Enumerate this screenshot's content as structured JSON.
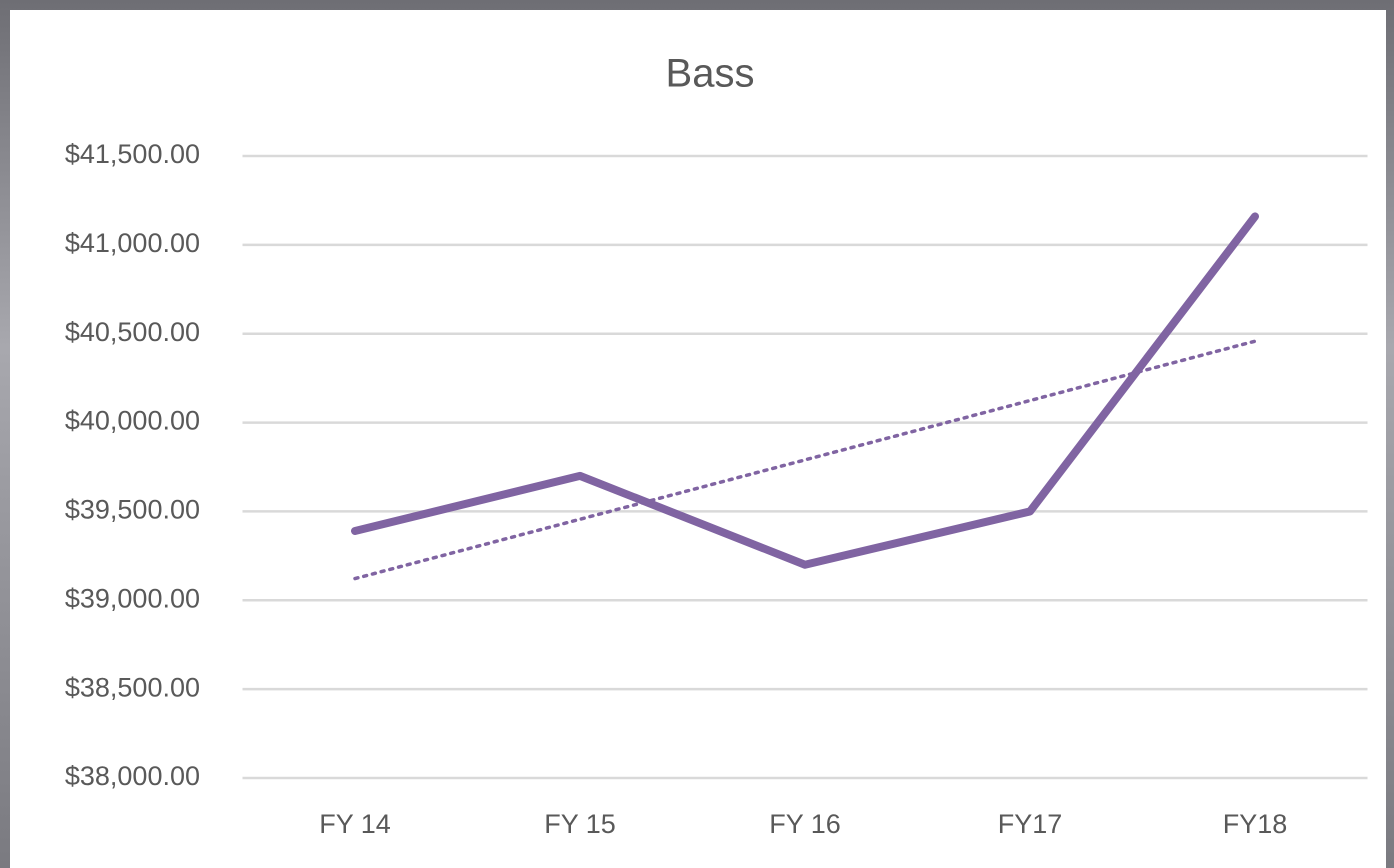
{
  "chart_data": {
    "type": "line",
    "title": "Bass",
    "categories": [
      "FY 14",
      "FY 15",
      "FY 16",
      "FY17",
      "FY18"
    ],
    "series": [
      {
        "name": "Bass",
        "color": "#8064a2",
        "values": [
          39390,
          39700,
          39200,
          39500,
          41160
        ]
      }
    ],
    "trendline": {
      "kind": "linear",
      "color": "#8064a2",
      "style": "dotted"
    },
    "ylim": [
      38000,
      41500
    ],
    "yticks": [
      {
        "value": 38000,
        "label": "$38,000.00"
      },
      {
        "value": 38500,
        "label": "$38,500.00"
      },
      {
        "value": 39000,
        "label": "$39,000.00"
      },
      {
        "value": 39500,
        "label": "$39,500.00"
      },
      {
        "value": 40000,
        "label": "$40,000.00"
      },
      {
        "value": 40500,
        "label": "$40,500.00"
      },
      {
        "value": 41000,
        "label": "$41,000.00"
      },
      {
        "value": 41500,
        "label": "$41,500.00"
      }
    ],
    "grid": true,
    "legend": false
  }
}
